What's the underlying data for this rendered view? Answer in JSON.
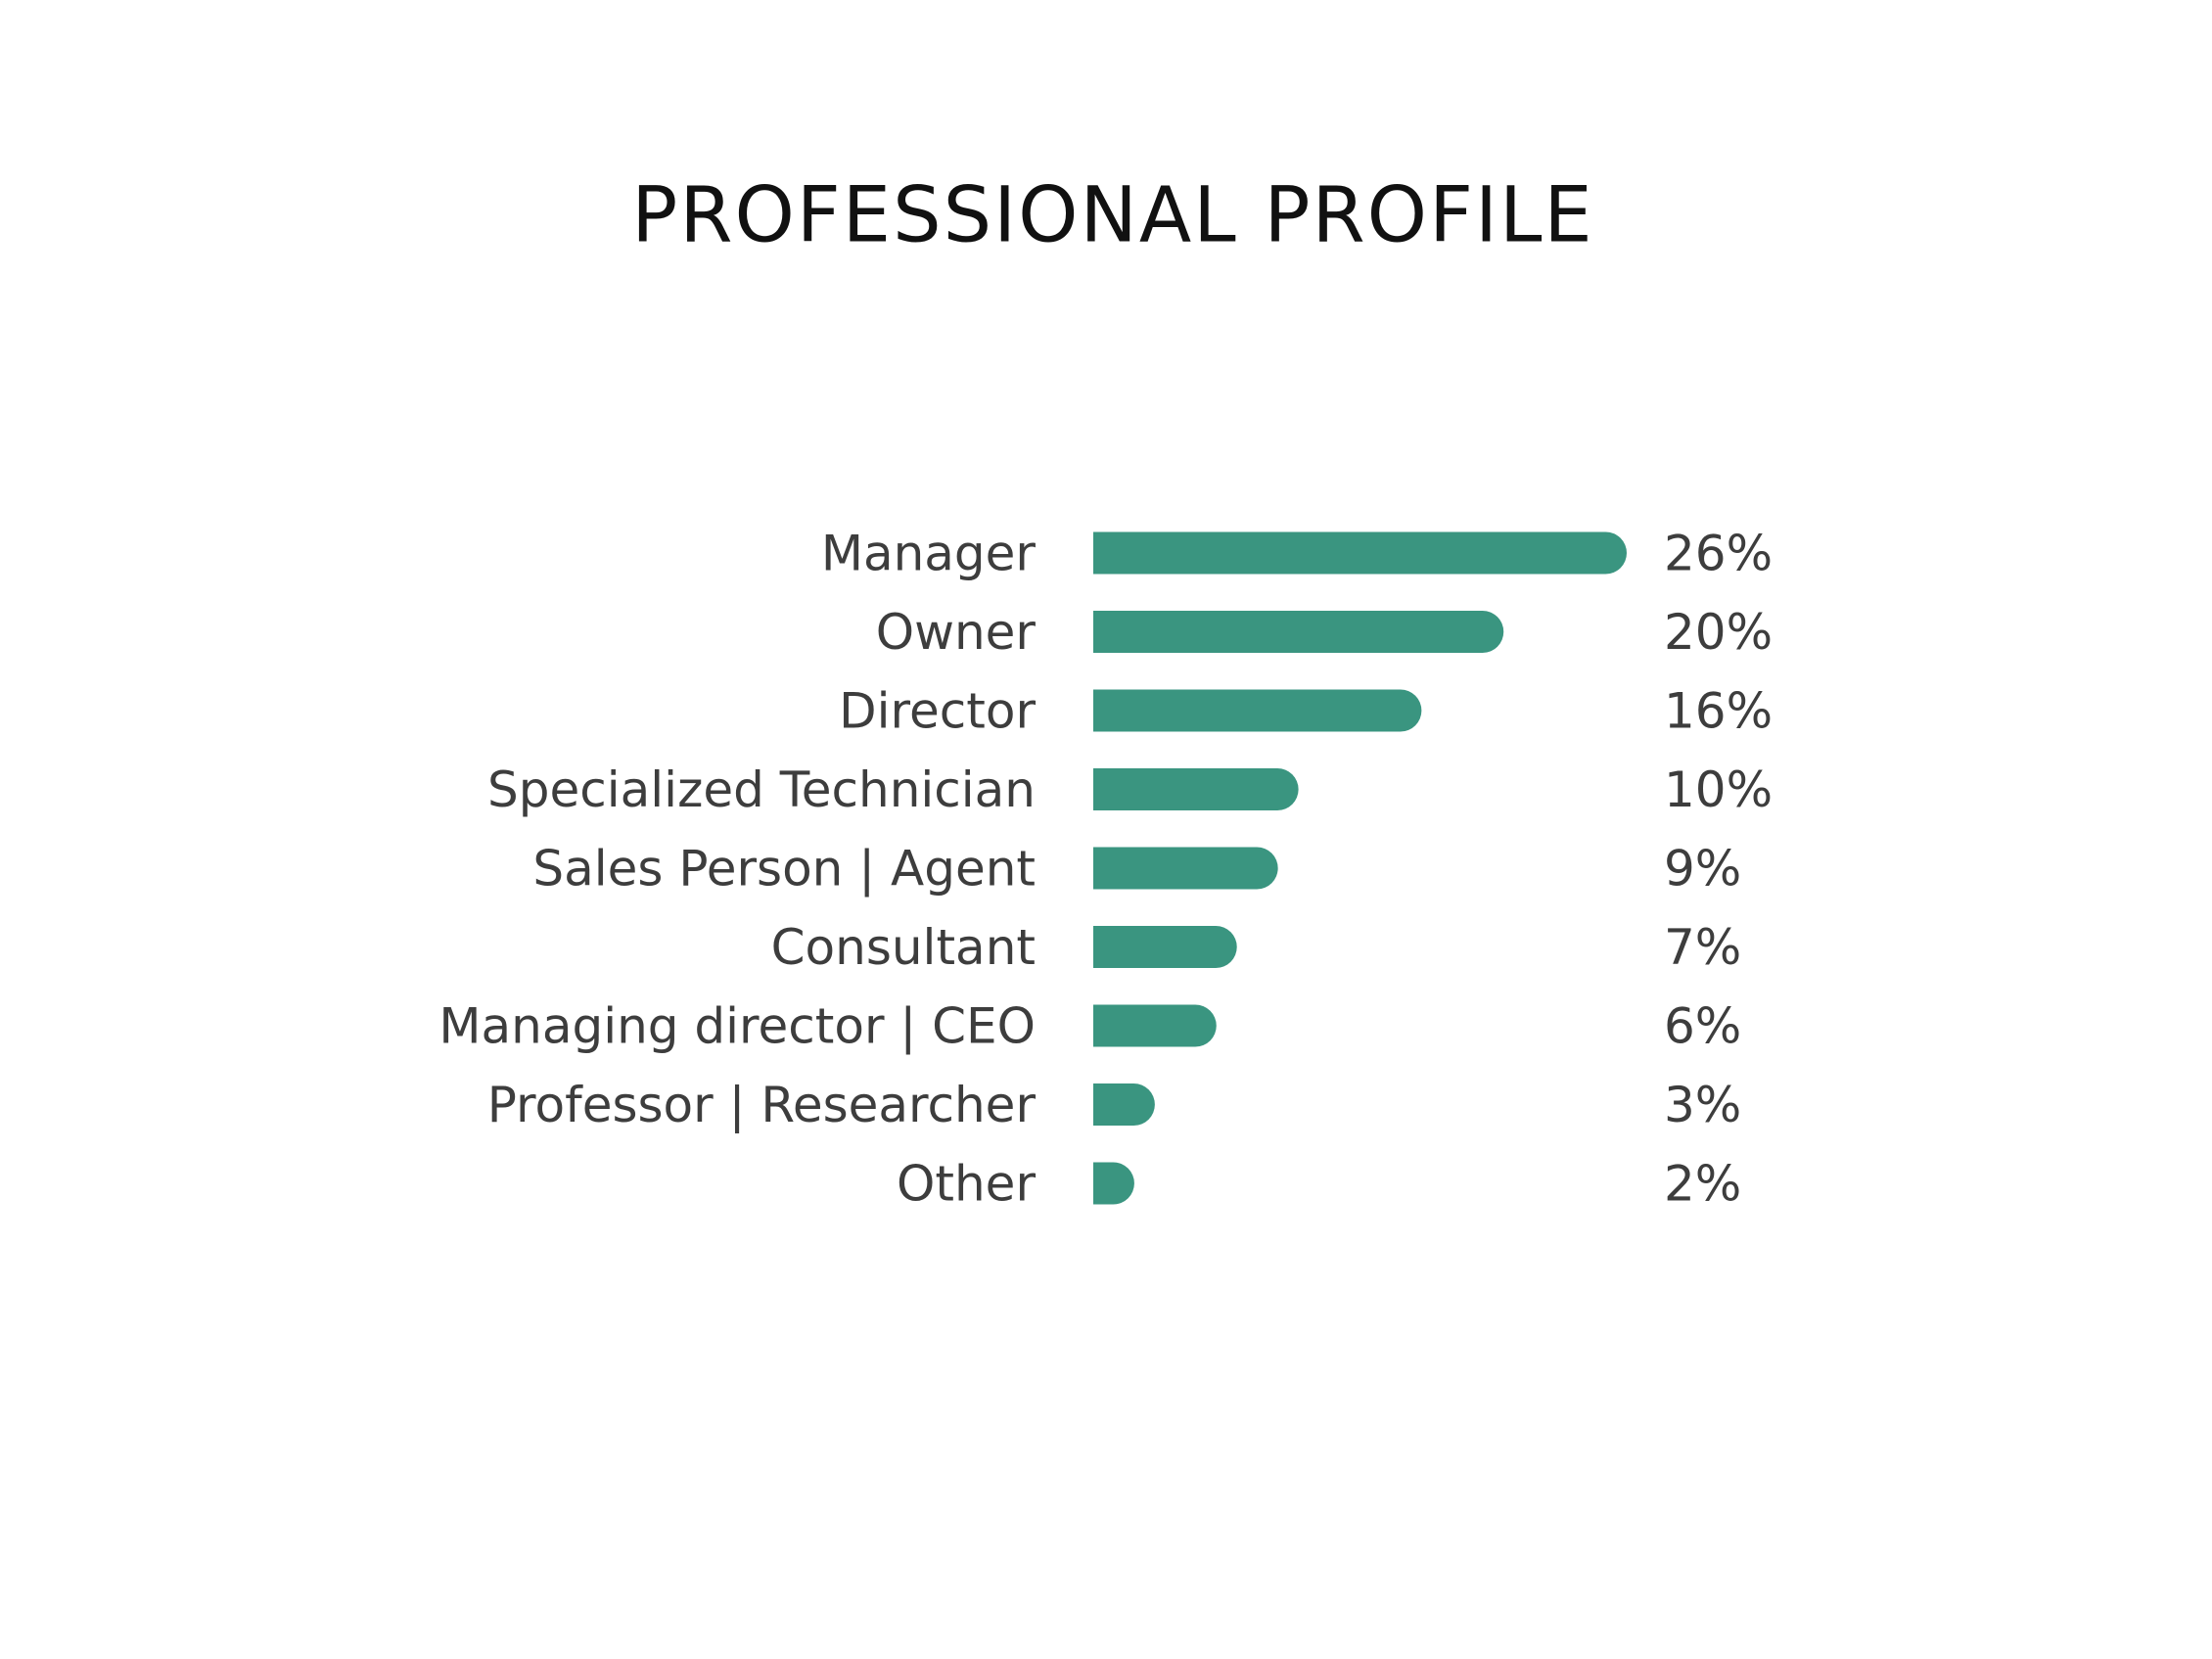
{
  "chart_data": {
    "type": "bar",
    "orientation": "horizontal",
    "title": "PROFESSIONAL PROFILE",
    "categories": [
      "Manager",
      "Owner",
      "Director",
      "Specialized Technician",
      "Sales Person | Agent",
      "Consultant",
      "Managing director | CEO",
      "Professor | Researcher",
      "Other"
    ],
    "values": [
      26,
      20,
      16,
      10,
      9,
      7,
      6,
      3,
      2
    ],
    "value_labels": [
      "26%",
      "20%",
      "16%",
      "10%",
      "9%",
      "7%",
      "6%",
      "3%",
      "2%"
    ],
    "color": "#3a9580"
  }
}
